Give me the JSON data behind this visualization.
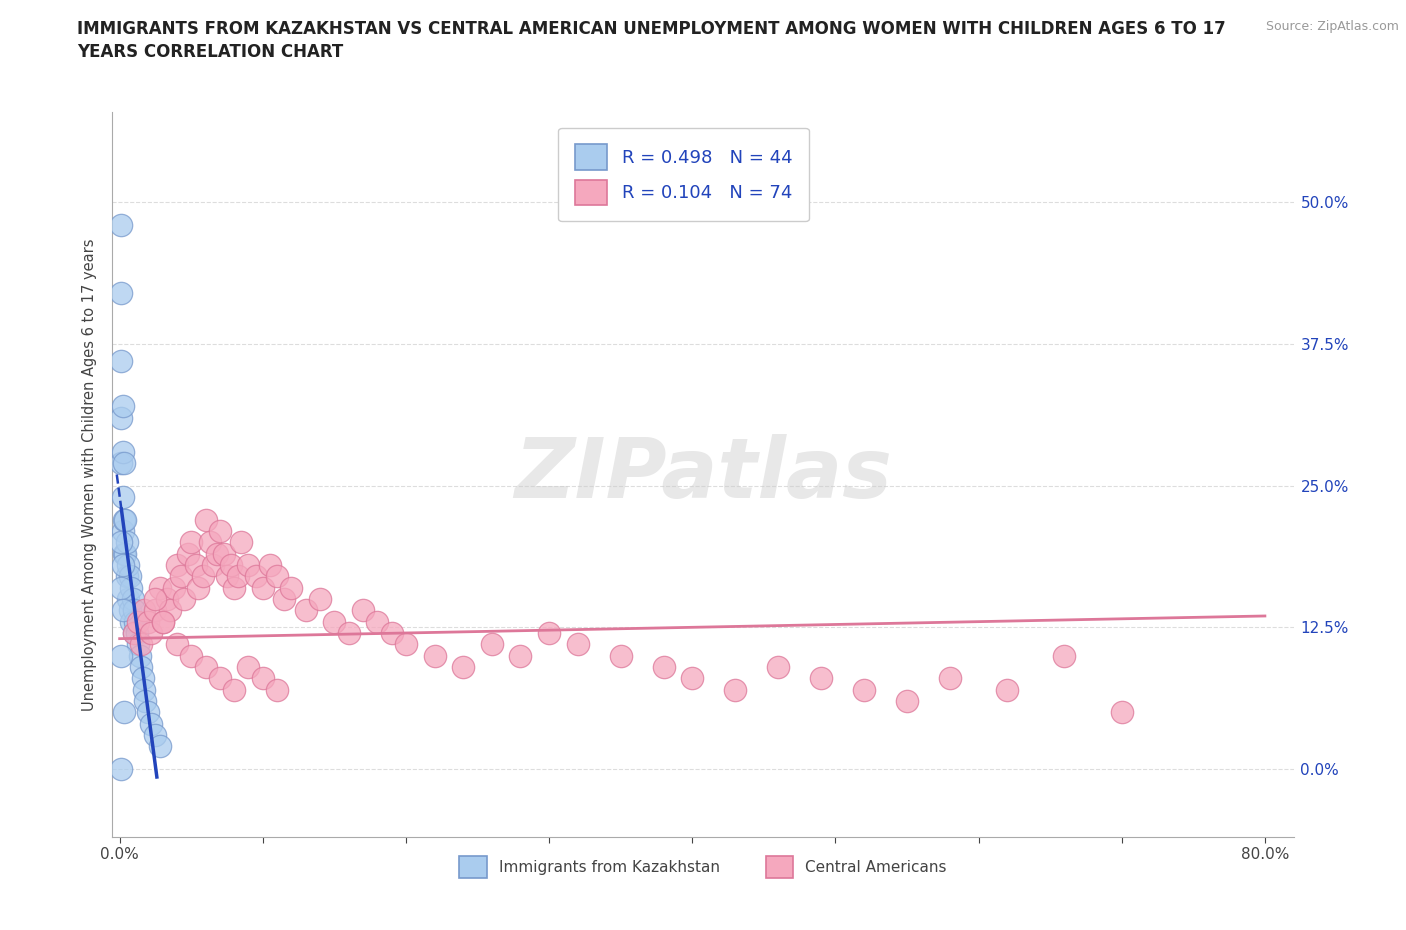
{
  "title_line1": "IMMIGRANTS FROM KAZAKHSTAN VS CENTRAL AMERICAN UNEMPLOYMENT AMONG WOMEN WITH CHILDREN AGES 6 TO 17",
  "title_line2": "YEARS CORRELATION CHART",
  "source": "Source: ZipAtlas.com",
  "ylabel": "Unemployment Among Women with Children Ages 6 to 17 years",
  "xlim": [
    -0.005,
    0.82
  ],
  "ylim": [
    -0.06,
    0.58
  ],
  "ytick_vals": [
    0.0,
    0.125,
    0.25,
    0.375,
    0.5
  ],
  "ytick_labels_right": [
    "0.0%",
    "12.5%",
    "25.0%",
    "37.5%",
    "50.0%"
  ],
  "kazakhstan_color": "#aaccee",
  "kazakhstan_edge": "#7799cc",
  "central_color": "#f5a8be",
  "central_edge": "#dd7799",
  "reg_blue": "#2244bb",
  "reg_pink": "#dd7799",
  "legend_R1": "0.498",
  "legend_N1": "44",
  "legend_R2": "0.104",
  "legend_N2": "74",
  "legend_label1": "Immigrants from Kazakhstan",
  "legend_label2": "Central Americans",
  "watermark": "ZIPatlas",
  "kazakhstan_x": [
    0.001,
    0.001,
    0.001,
    0.001,
    0.001,
    0.002,
    0.002,
    0.002,
    0.002,
    0.003,
    0.003,
    0.003,
    0.004,
    0.004,
    0.005,
    0.005,
    0.006,
    0.006,
    0.007,
    0.007,
    0.008,
    0.008,
    0.009,
    0.01,
    0.01,
    0.011,
    0.012,
    0.013,
    0.014,
    0.015,
    0.016,
    0.017,
    0.018,
    0.02,
    0.022,
    0.025,
    0.028,
    0.001,
    0.001,
    0.002,
    0.002,
    0.001,
    0.001,
    0.003
  ],
  "kazakhstan_y": [
    0.48,
    0.42,
    0.36,
    0.31,
    0.27,
    0.32,
    0.28,
    0.24,
    0.21,
    0.27,
    0.22,
    0.19,
    0.22,
    0.19,
    0.2,
    0.17,
    0.18,
    0.15,
    0.17,
    0.14,
    0.16,
    0.13,
    0.15,
    0.14,
    0.12,
    0.13,
    0.12,
    0.11,
    0.1,
    0.09,
    0.08,
    0.07,
    0.06,
    0.05,
    0.04,
    0.03,
    0.02,
    0.2,
    0.16,
    0.18,
    0.14,
    0.1,
    0.0,
    0.05
  ],
  "central_x": [
    0.01,
    0.013,
    0.015,
    0.017,
    0.02,
    0.022,
    0.025,
    0.028,
    0.03,
    0.033,
    0.035,
    0.038,
    0.04,
    0.043,
    0.045,
    0.048,
    0.05,
    0.053,
    0.055,
    0.058,
    0.06,
    0.063,
    0.065,
    0.068,
    0.07,
    0.073,
    0.075,
    0.078,
    0.08,
    0.083,
    0.085,
    0.09,
    0.095,
    0.1,
    0.105,
    0.11,
    0.115,
    0.12,
    0.13,
    0.14,
    0.15,
    0.16,
    0.17,
    0.18,
    0.19,
    0.2,
    0.22,
    0.24,
    0.26,
    0.28,
    0.3,
    0.32,
    0.35,
    0.38,
    0.4,
    0.43,
    0.46,
    0.49,
    0.52,
    0.55,
    0.025,
    0.03,
    0.04,
    0.05,
    0.06,
    0.07,
    0.08,
    0.09,
    0.1,
    0.11,
    0.58,
    0.62,
    0.66,
    0.7
  ],
  "central_y": [
    0.12,
    0.13,
    0.11,
    0.14,
    0.13,
    0.12,
    0.14,
    0.16,
    0.13,
    0.15,
    0.14,
    0.16,
    0.18,
    0.17,
    0.15,
    0.19,
    0.2,
    0.18,
    0.16,
    0.17,
    0.22,
    0.2,
    0.18,
    0.19,
    0.21,
    0.19,
    0.17,
    0.18,
    0.16,
    0.17,
    0.2,
    0.18,
    0.17,
    0.16,
    0.18,
    0.17,
    0.15,
    0.16,
    0.14,
    0.15,
    0.13,
    0.12,
    0.14,
    0.13,
    0.12,
    0.11,
    0.1,
    0.09,
    0.11,
    0.1,
    0.12,
    0.11,
    0.1,
    0.09,
    0.08,
    0.07,
    0.09,
    0.08,
    0.07,
    0.06,
    0.15,
    0.13,
    0.11,
    0.1,
    0.09,
    0.08,
    0.07,
    0.09,
    0.08,
    0.07,
    0.08,
    0.07,
    0.1,
    0.05
  ]
}
